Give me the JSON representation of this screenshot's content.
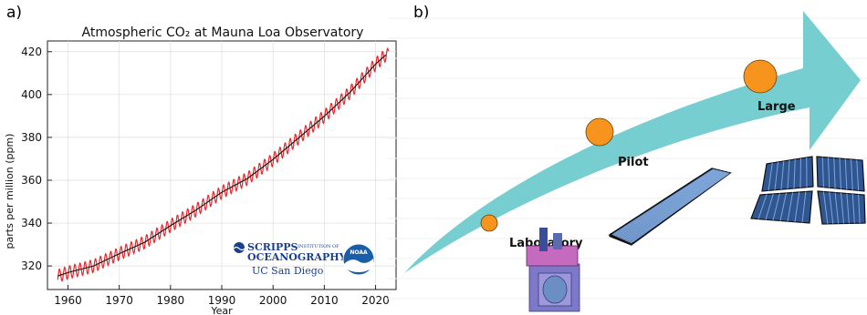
{
  "panels": {
    "a_label": "a)",
    "b_label": "b)"
  },
  "chart_data": [
    {
      "type": "line",
      "title": "Atmospheric CO₂ at Mauna Loa Observatory",
      "xlabel": "Year",
      "ylabel": "parts per million (ppm)",
      "xlim": [
        1956,
        2024
      ],
      "ylim": [
        309,
        425
      ],
      "x_ticks": [
        1960,
        1970,
        1980,
        1990,
        2000,
        2010,
        2020
      ],
      "y_ticks": [
        320,
        340,
        360,
        380,
        400,
        420
      ],
      "grid": true,
      "series": [
        {
          "role": "annual trend (black)",
          "color": "#111111",
          "x": [
            1958,
            1960,
            1965,
            1970,
            1975,
            1980,
            1985,
            1990,
            1995,
            2000,
            2005,
            2010,
            2015,
            2020,
            2022
          ],
          "values": [
            315.3,
            316.9,
            320.0,
            325.7,
            331.1,
            338.8,
            346.1,
            354.4,
            360.8,
            369.7,
            379.8,
            389.9,
            401.0,
            414.2,
            418.5
          ]
        },
        {
          "role": "monthly mean (red)",
          "color": "#e8262b",
          "seasonal_amplitude_ppm": 3.0,
          "x_range": [
            1958,
            2022.5
          ]
        }
      ]
    },
    {
      "type": "diagram",
      "stages": [
        {
          "label": "Laboratory"
        },
        {
          "label": "Pilot"
        },
        {
          "label": "Large"
        }
      ],
      "arrow_color": "#5fc5c9",
      "marker_color": "#f7941d"
    }
  ],
  "logos": {
    "scripps_line1": "SCRIPPS",
    "scripps_sub": "INSTITUTION OF",
    "scripps_line2": "OCEANOGRAPHY",
    "ucsd": "UC San Diego",
    "noaa": "NOAA"
  }
}
